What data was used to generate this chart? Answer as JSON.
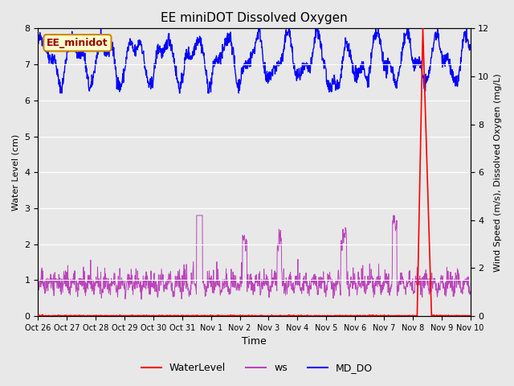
{
  "title": "EE miniDOT Dissolved Oxygen",
  "xlabel": "Time",
  "ylabel_left": "Water Level (cm)",
  "ylabel_right": "Wind Speed (m/s), Dissolved Oxygen (mg/L)",
  "annotation_text": "EE_minidot",
  "ylim_left": [
    0.0,
    8.0
  ],
  "ylim_right": [
    0,
    12
  ],
  "fig_bg_color": "#e8e8e8",
  "plot_bg_color": "#dcdcdc",
  "line_WaterLevel_color": "red",
  "line_ws_color": "#bb44bb",
  "line_MD_DO_color": "blue",
  "legend_items": [
    "WaterLevel",
    "ws",
    "MD_DO"
  ],
  "tick_labels": [
    "Oct 26",
    "Oct 27",
    "Oct 28",
    "Oct 29",
    "Oct 30",
    "Oct 31",
    "Nov 1",
    "Nov 2",
    "Nov 3",
    "Nov 4",
    "Nov 5",
    "Nov 6",
    "Nov 7",
    "Nov 8",
    "Nov 9",
    "Nov 10"
  ],
  "yticks_left": [
    0.0,
    1.0,
    2.0,
    3.0,
    4.0,
    5.0,
    6.0,
    7.0,
    8.0
  ],
  "yticks_right": [
    0,
    2,
    4,
    6,
    8,
    10,
    12
  ],
  "annotation_bbox_fc": "#ffffcc",
  "annotation_bbox_ec": "#cc8800",
  "annotation_color": "#990000"
}
